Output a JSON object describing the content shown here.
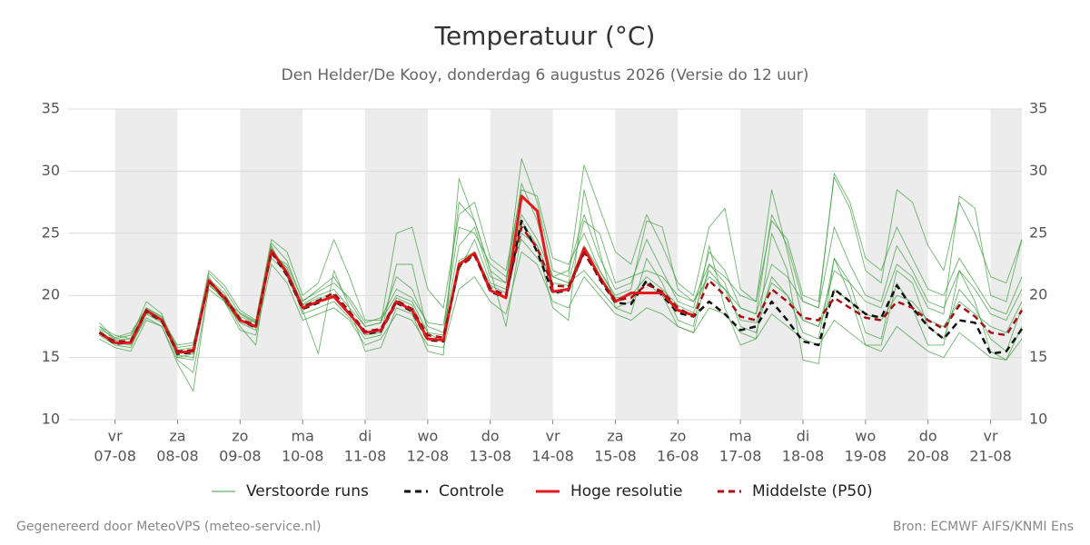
{
  "chart_data": {
    "type": "line",
    "title": "Temperatuur (°C)",
    "subtitle": "Den Helder/De Kooy, donderdag  6 augustus 2026 (Versie do 12 uur)",
    "footer_left": "Gegenereerd door MeteoVPS (meteo-service.nl)",
    "footer_right": "Bron: ECMWF AIFS/KNMI Ens",
    "alternate_day_shading": true,
    "grid": true,
    "legend": "bottom",
    "xlim": [
      "06-08 06:00",
      "21-08 12:00"
    ],
    "xticks": [
      {
        "value": "07-08 00:00",
        "weekday": "vr",
        "label": "07-08"
      },
      {
        "value": "08-08 00:00",
        "weekday": "za",
        "label": "08-08"
      },
      {
        "value": "09-08 00:00",
        "weekday": "zo",
        "label": "09-08"
      },
      {
        "value": "10-08 00:00",
        "weekday": "ma",
        "label": "10-08"
      },
      {
        "value": "11-08 00:00",
        "weekday": "di",
        "label": "11-08"
      },
      {
        "value": "12-08 00:00",
        "weekday": "wo",
        "label": "12-08"
      },
      {
        "value": "13-08 00:00",
        "weekday": "do",
        "label": "13-08"
      },
      {
        "value": "14-08 00:00",
        "weekday": "vr",
        "label": "14-08"
      },
      {
        "value": "15-08 00:00",
        "weekday": "za",
        "label": "15-08"
      },
      {
        "value": "16-08 00:00",
        "weekday": "zo",
        "label": "16-08"
      },
      {
        "value": "17-08 00:00",
        "weekday": "ma",
        "label": "17-08"
      },
      {
        "value": "18-08 00:00",
        "weekday": "di",
        "label": "18-08"
      },
      {
        "value": "19-08 00:00",
        "weekday": "wo",
        "label": "19-08"
      },
      {
        "value": "20-08 00:00",
        "weekday": "do",
        "label": "20-08"
      },
      {
        "value": "21-08 00:00",
        "weekday": "vr",
        "label": "21-08"
      }
    ],
    "ylim": [
      10,
      35
    ],
    "yticks": [
      10,
      15,
      20,
      25,
      30,
      35
    ],
    "x": [
      "06-08 18:00",
      "07-08 00:00",
      "07-08 06:00",
      "07-08 12:00",
      "07-08 18:00",
      "08-08 00:00",
      "08-08 06:00",
      "08-08 12:00",
      "08-08 18:00",
      "09-08 00:00",
      "09-08 06:00",
      "09-08 12:00",
      "09-08 18:00",
      "10-08 00:00",
      "10-08 06:00",
      "10-08 12:00",
      "10-08 18:00",
      "11-08 00:00",
      "11-08 06:00",
      "11-08 12:00",
      "11-08 18:00",
      "12-08 00:00",
      "12-08 06:00",
      "12-08 12:00",
      "12-08 18:00",
      "13-08 00:00",
      "13-08 06:00",
      "13-08 12:00",
      "13-08 18:00",
      "14-08 00:00",
      "14-08 06:00",
      "14-08 12:00",
      "14-08 18:00",
      "15-08 00:00",
      "15-08 06:00",
      "15-08 12:00",
      "15-08 18:00",
      "16-08 00:00",
      "16-08 06:00",
      "16-08 12:00",
      "16-08 18:00",
      "17-08 00:00",
      "17-08 06:00",
      "17-08 12:00",
      "17-08 18:00",
      "18-08 00:00",
      "18-08 06:00",
      "18-08 12:00",
      "18-08 18:00",
      "19-08 00:00",
      "19-08 06:00",
      "19-08 12:00",
      "19-08 18:00",
      "20-08 00:00",
      "20-08 06:00",
      "20-08 12:00",
      "20-08 18:00",
      "21-08 00:00",
      "21-08 06:00",
      "21-08 12:00"
    ],
    "ensemble": {
      "name": "Verstoorde runs",
      "color": "#3c9e3c",
      "runs": [
        [
          17.5,
          16.8,
          16.5,
          19.5,
          18.5,
          15.0,
          14.8,
          21.8,
          20.5,
          18.5,
          17.8,
          24.2,
          22.8,
          19.5,
          20.5,
          21.5,
          19.5,
          17.5,
          17.8,
          21.5,
          20.5,
          17.5,
          17.0,
          24.0,
          25.5,
          21.5,
          21.0,
          29.0,
          26.0,
          21.5,
          22.0,
          26.5,
          23.0,
          20.5,
          21.0,
          24.5,
          22.0,
          19.5,
          19.0,
          23.5,
          22.0,
          19.0,
          18.5,
          26.5,
          24.0,
          19.5,
          19.0,
          25.5,
          22.5,
          20.0,
          19.5,
          24.0,
          22.0,
          19.5,
          19.0,
          22.0,
          20.5,
          18.5,
          18.0,
          20.5
        ],
        [
          16.5,
          15.8,
          15.5,
          18.0,
          17.5,
          14.8,
          13.8,
          20.5,
          19.5,
          17.2,
          16.8,
          22.5,
          21.0,
          18.0,
          18.5,
          19.0,
          18.0,
          16.0,
          16.5,
          18.5,
          18.0,
          16.0,
          15.8,
          20.5,
          21.5,
          19.5,
          18.5,
          23.5,
          22.5,
          19.5,
          19.0,
          21.5,
          20.0,
          18.5,
          18.0,
          19.0,
          18.5,
          17.5,
          17.0,
          19.0,
          18.5,
          17.0,
          16.5,
          18.5,
          17.5,
          16.5,
          16.0,
          18.0,
          17.0,
          16.0,
          15.5,
          17.5,
          16.5,
          15.5,
          15.0,
          17.0,
          16.0,
          15.0,
          14.8,
          16.5
        ],
        [
          17.8,
          16.5,
          16.8,
          19.0,
          18.3,
          15.8,
          16.0,
          22.0,
          20.8,
          18.8,
          18.0,
          24.5,
          23.5,
          20.0,
          21.0,
          24.5,
          21.5,
          18.0,
          18.0,
          20.0,
          19.5,
          17.0,
          16.8,
          27.5,
          26.0,
          22.0,
          21.0,
          31.0,
          27.5,
          22.0,
          21.5,
          30.5,
          27.0,
          23.5,
          22.5,
          26.5,
          24.0,
          21.0,
          20.0,
          25.5,
          27.0,
          20.5,
          19.5,
          26.0,
          24.5,
          20.0,
          19.5,
          29.5,
          27.0,
          22.0,
          21.0,
          28.5,
          27.5,
          24.0,
          22.0,
          27.5,
          25.0,
          21.5,
          21.0,
          24.5
        ],
        [
          16.8,
          16.0,
          15.8,
          18.5,
          17.8,
          15.2,
          15.0,
          21.5,
          19.5,
          17.8,
          17.2,
          23.8,
          22.0,
          18.5,
          19.0,
          19.5,
          18.2,
          16.5,
          16.8,
          22.5,
          22.5,
          17.0,
          16.2,
          22.0,
          24.5,
          21.0,
          20.5,
          26.5,
          24.5,
          21.5,
          21.0,
          22.0,
          20.5,
          19.0,
          19.5,
          21.0,
          20.0,
          17.5,
          17.0,
          22.5,
          21.0,
          17.5,
          17.0,
          21.5,
          20.0,
          17.0,
          16.5,
          23.0,
          21.0,
          17.0,
          16.5,
          22.0,
          21.0,
          17.5,
          16.5,
          20.5,
          19.0,
          16.5,
          15.5,
          19.0
        ],
        [
          17.2,
          16.2,
          16.0,
          18.2,
          17.5,
          14.5,
          12.3,
          20.8,
          19.8,
          17.5,
          16.0,
          24.0,
          21.5,
          18.8,
          15.3,
          22.0,
          19.0,
          15.5,
          15.8,
          19.0,
          18.5,
          15.5,
          15.2,
          29.4,
          26.0,
          22.0,
          17.5,
          25.0,
          24.0,
          19.0,
          18.0,
          28.5,
          23.5,
          19.0,
          18.5,
          23.0,
          21.0,
          18.0,
          17.5,
          24.0,
          19.0,
          16.0,
          16.5,
          25.0,
          22.0,
          14.8,
          14.5,
          23.0,
          20.0,
          16.0,
          16.0,
          21.0,
          19.0,
          16.0,
          16.0,
          22.0,
          19.5,
          15.5,
          14.8,
          17.5
        ],
        [
          17.5,
          16.4,
          16.5,
          18.6,
          18.0,
          16.0,
          16.2,
          21.0,
          20.0,
          18.3,
          17.8,
          23.0,
          21.8,
          19.3,
          20.0,
          20.5,
          19.0,
          17.5,
          17.8,
          25.0,
          25.5,
          20.5,
          19.0,
          26.5,
          27.5,
          23.0,
          22.0,
          28.5,
          28.0,
          23.0,
          22.5,
          25.0,
          22.0,
          20.0,
          20.5,
          26.0,
          25.5,
          20.5,
          19.5,
          21.5,
          20.5,
          19.0,
          18.5,
          22.5,
          21.5,
          19.5,
          19.0,
          29.8,
          27.5,
          23.0,
          22.0,
          25.5,
          23.0,
          20.5,
          20.0,
          23.0,
          21.0,
          19.0,
          18.5,
          21.5
        ],
        [
          16.9,
          16.1,
          16.2,
          19.0,
          18.2,
          15.6,
          15.8,
          21.3,
          20.2,
          18.0,
          17.4,
          23.6,
          22.2,
          19.2,
          19.8,
          20.0,
          18.5,
          16.8,
          17.0,
          19.8,
          19.2,
          16.5,
          16.4,
          22.8,
          23.5,
          20.8,
          20.2,
          26.0,
          24.0,
          21.0,
          20.8,
          24.0,
          22.0,
          19.8,
          20.0,
          21.5,
          20.5,
          19.2,
          18.6,
          22.0,
          20.5,
          18.0,
          17.8,
          21.0,
          20.0,
          18.0,
          17.5,
          20.5,
          19.5,
          18.5,
          18.0,
          20.0,
          19.5,
          18.0,
          17.5,
          19.5,
          18.5,
          17.5,
          17.0,
          19.5
        ],
        [
          17.3,
          16.6,
          17.0,
          18.9,
          18.1,
          15.0,
          15.3,
          20.9,
          19.6,
          18.6,
          17.9,
          23.2,
          22.5,
          19.6,
          20.3,
          21.0,
          19.8,
          17.8,
          18.2,
          20.5,
          19.8,
          17.8,
          17.6,
          25.5,
          25.0,
          22.5,
          21.5,
          24.5,
          23.0,
          21.5,
          21.0,
          26.0,
          25.0,
          21.0,
          21.5,
          22.0,
          21.5,
          20.0,
          19.5,
          22.5,
          21.5,
          20.0,
          19.5,
          28.5,
          23.5,
          18.0,
          17.5,
          22.0,
          21.0,
          19.5,
          19.0,
          22.5,
          21.5,
          19.0,
          18.5,
          28.0,
          27.0,
          20.0,
          19.5,
          24.5
        ]
      ]
    },
    "series": [
      {
        "name": "Controle",
        "color": "#111111",
        "dashed": true,
        "values": [
          17.0,
          16.1,
          16.2,
          18.7,
          17.9,
          15.3,
          15.4,
          21.2,
          19.7,
          18.0,
          17.4,
          23.5,
          21.6,
          18.9,
          19.4,
          20.0,
          18.6,
          16.9,
          17.1,
          19.4,
          18.7,
          16.4,
          16.3,
          22.4,
          23.3,
          20.3,
          19.8,
          26.0,
          23.5,
          20.2,
          20.4,
          23.6,
          21.3,
          19.4,
          19.3,
          21.2,
          20.0,
          18.6,
          18.3,
          19.5,
          18.5,
          17.2,
          17.5,
          19.5,
          18.0,
          16.3,
          16.0,
          20.5,
          19.5,
          18.5,
          18.2,
          20.8,
          19.0,
          17.5,
          16.5,
          18.0,
          17.8,
          15.3,
          15.5,
          17.3
        ]
      },
      {
        "name": "Hoge resolutie",
        "color": "#e3191c",
        "dashed": false,
        "values": [
          17.0,
          16.2,
          16.2,
          18.8,
          18.0,
          15.4,
          15.5,
          21.2,
          19.8,
          18.0,
          17.5,
          23.6,
          21.8,
          19.0,
          19.5,
          19.9,
          18.5,
          17.0,
          17.2,
          19.5,
          18.8,
          16.5,
          16.4,
          22.5,
          23.4,
          20.4,
          19.8,
          28.0,
          26.8,
          20.3,
          20.5,
          23.8,
          21.5,
          19.5,
          20.2,
          20.2,
          20.2,
          18.8,
          18.4,
          null,
          null,
          null,
          null,
          null,
          null,
          null,
          null,
          null,
          null,
          null,
          null,
          null,
          null,
          null,
          null,
          null,
          null,
          null,
          null,
          null
        ]
      },
      {
        "name": "Middelste (P50)",
        "color": "#a50f15",
        "dashed": true,
        "values": [
          17.0,
          16.3,
          16.3,
          18.8,
          17.9,
          15.5,
          15.6,
          21.1,
          19.9,
          18.1,
          17.6,
          23.5,
          21.7,
          19.1,
          19.6,
          20.2,
          18.7,
          17.1,
          17.3,
          19.6,
          18.9,
          16.8,
          16.6,
          22.3,
          23.2,
          20.6,
          20.0,
          25.5,
          23.8,
          20.8,
          20.7,
          23.4,
          21.4,
          19.6,
          19.8,
          20.9,
          20.3,
          19.0,
          18.3,
          21.2,
          20.0,
          18.3,
          18.0,
          20.5,
          19.5,
          18.2,
          18.0,
          19.8,
          19.0,
          18.2,
          18.0,
          19.5,
          19.0,
          18.0,
          17.3,
          19.2,
          18.3,
          17.0,
          16.8,
          18.8
        ]
      }
    ]
  }
}
